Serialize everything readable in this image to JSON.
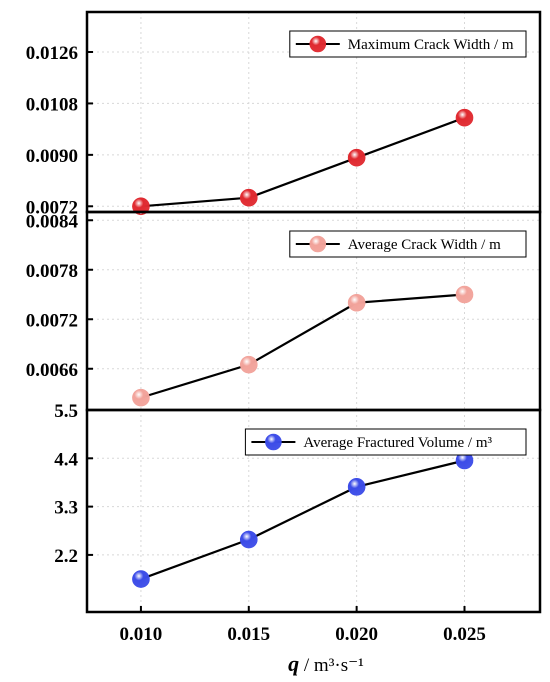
{
  "x_axis_label": {
    "symbol": "q",
    "unit": " / m³·s⁻¹"
  },
  "chart_data": [
    {
      "type": "line",
      "x": [
        0.01,
        0.015,
        0.02,
        0.025
      ],
      "series": [
        {
          "name": "Maximum Crack Width / m",
          "values": [
            0.0072,
            0.0075,
            0.0089,
            0.0103
          ],
          "color": "#e02a30"
        }
      ],
      "ylim": [
        0.007,
        0.014
      ],
      "yticks": [
        "0.0072",
        "0.0090",
        "0.0108",
        "0.0126"
      ],
      "ytick_values": [
        0.0072,
        0.009,
        0.0108,
        0.0126
      ],
      "legend_position": "top-right",
      "grid": true
    },
    {
      "type": "line",
      "x": [
        0.01,
        0.015,
        0.02,
        0.025
      ],
      "series": [
        {
          "name": "Average Crack Width / m",
          "values": [
            0.00625,
            0.00665,
            0.0074,
            0.0075
          ],
          "color": "#f2a39b"
        }
      ],
      "ylim": [
        0.0061,
        0.0085
      ],
      "yticks": [
        "0.0066",
        "0.0072",
        "0.0078",
        "0.0084"
      ],
      "ytick_values": [
        0.0066,
        0.0072,
        0.0078,
        0.0084
      ],
      "legend_position": "top-right",
      "grid": true
    },
    {
      "type": "line",
      "x": [
        0.01,
        0.015,
        0.02,
        0.025
      ],
      "series": [
        {
          "name": "Average Fractured Volume / m³",
          "values": [
            1.65,
            2.55,
            3.75,
            4.35
          ],
          "color": "#3c4ce8"
        }
      ],
      "ylim": [
        0.9,
        5.5
      ],
      "yticks": [
        "2.2",
        "3.3",
        "4.4",
        "5.5"
      ],
      "ytick_values": [
        2.2,
        3.3,
        4.4,
        5.5
      ],
      "legend_position": "top-right",
      "grid": true
    }
  ],
  "x_axis": {
    "xlim": [
      0.0075,
      0.0285
    ],
    "ticks": [
      "0.010",
      "0.015",
      "0.020",
      "0.025"
    ],
    "tick_values": [
      0.01,
      0.015,
      0.02,
      0.025
    ]
  }
}
